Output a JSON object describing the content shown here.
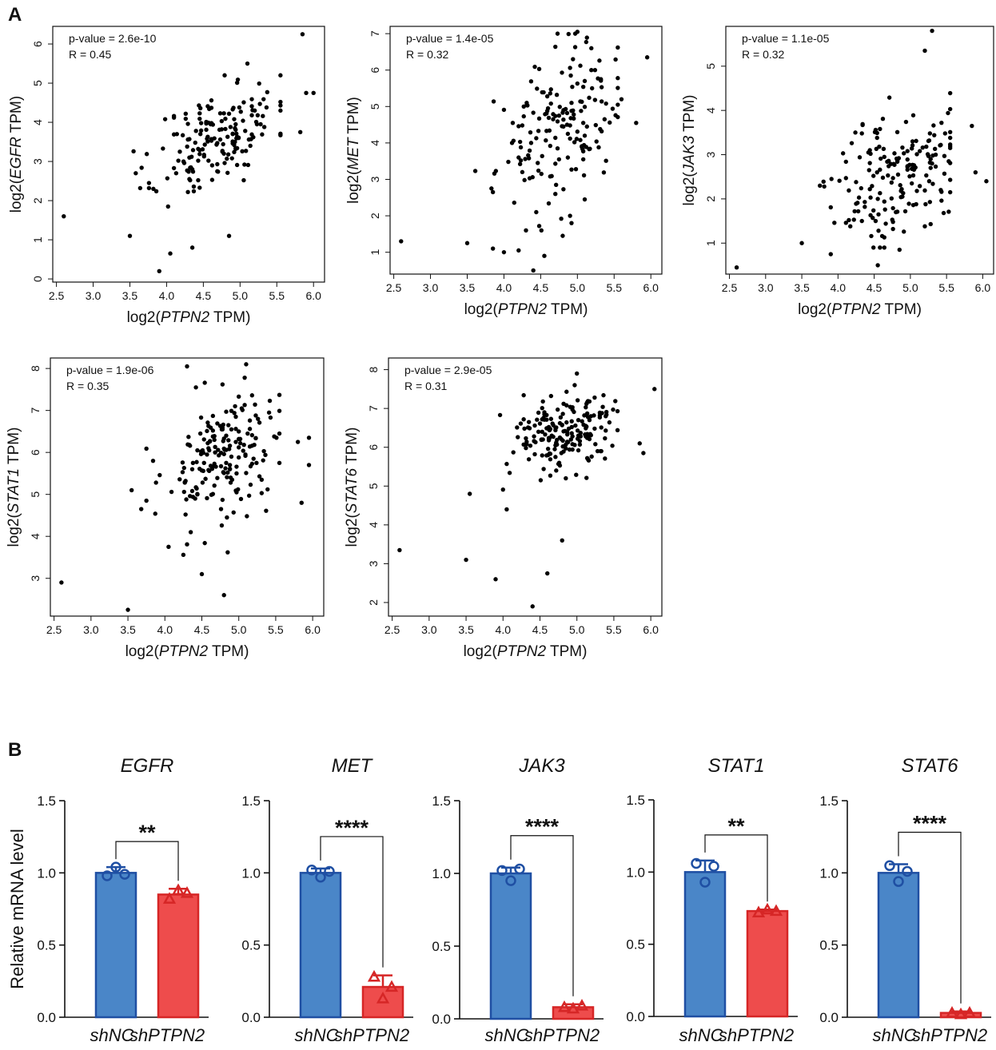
{
  "panels": {
    "a": "A",
    "b": "B"
  },
  "colors": {
    "shNC": "#4a86c8",
    "shNC_edge": "#1f4fa3",
    "shPTPN2": "#ee4c4c",
    "shPTPN2_edge": "#d62626",
    "point": "#000000",
    "ink": "#111111"
  },
  "chart_data": [
    {
      "type": "scatter",
      "id": "EGFR",
      "xlabel_prefix": "log2(",
      "xlabel_gene": "PTPN2",
      "xlabel_suffix": " TPM)",
      "ylabel_prefix": "log2(",
      "ylabel_gene": "EGFR",
      "ylabel_suffix": " TPM)",
      "p_text": "p-value = 2.6e-10",
      "r_text": "R = 0.45",
      "xticks": [
        2.5,
        3.0,
        3.5,
        4.0,
        4.5,
        5.0,
        5.5,
        6.0
      ],
      "xticklabels": [
        "2.5",
        "3.0",
        "3.5",
        "4.0",
        "4.5",
        "5.0",
        "5.5",
        "6.0"
      ],
      "yticks": [
        0,
        1,
        2,
        3,
        4,
        5,
        6
      ],
      "yticklabels": [
        "0",
        "1",
        "2",
        "3",
        "4",
        "5",
        "6"
      ],
      "xlim": [
        2.45,
        6.15
      ],
      "ylim": [
        -0.08,
        6.45
      ]
    },
    {
      "type": "scatter",
      "id": "MET",
      "xlabel_prefix": "log2(",
      "xlabel_gene": "PTPN2",
      "xlabel_suffix": " TPM)",
      "ylabel_prefix": "log2(",
      "ylabel_gene": "MET",
      "ylabel_suffix": " TPM)",
      "p_text": "p-value = 1.4e-05",
      "r_text": "R = 0.32",
      "xticks": [
        2.5,
        3.0,
        3.5,
        4.0,
        4.5,
        5.0,
        5.5,
        6.0
      ],
      "xticklabels": [
        "2.5",
        "3.0",
        "3.5",
        "4.0",
        "4.5",
        "5.0",
        "5.5",
        "6.0"
      ],
      "yticks": [
        1,
        2,
        3,
        4,
        5,
        6,
        7
      ],
      "yticklabels": [
        "1",
        "2",
        "3",
        "4",
        "5",
        "6",
        "7"
      ],
      "xlim": [
        2.45,
        6.15
      ],
      "ylim": [
        0.4,
        7.2
      ]
    },
    {
      "type": "scatter",
      "id": "JAK3",
      "xlabel_prefix": "log2(",
      "xlabel_gene": "PTPN2",
      "xlabel_suffix": " TPM)",
      "ylabel_prefix": "log2(",
      "ylabel_gene": "JAK3",
      "ylabel_suffix": " TPM)",
      "p_text": "p-value = 1.1e-05",
      "r_text": "R = 0.32",
      "xticks": [
        2.5,
        3.0,
        3.5,
        4.0,
        4.5,
        5.0,
        5.5,
        6.0
      ],
      "xticklabels": [
        "2.5",
        "3.0",
        "3.5",
        "4.0",
        "4.5",
        "5.0",
        "5.5",
        "6.0"
      ],
      "yticks": [
        1,
        2,
        3,
        4,
        5
      ],
      "yticklabels": [
        "1",
        "2",
        "3",
        "4",
        "5"
      ],
      "xlim": [
        2.45,
        6.15
      ],
      "ylim": [
        0.3,
        5.9
      ]
    },
    {
      "type": "scatter",
      "id": "STAT1",
      "xlabel_prefix": "log2(",
      "xlabel_gene": "PTPN2",
      "xlabel_suffix": " TPM)",
      "ylabel_prefix": "log2(",
      "ylabel_gene": "STAT1",
      "ylabel_suffix": " TPM)",
      "p_text": "p-value = 1.9e-06",
      "r_text": "R = 0.35",
      "xticks": [
        2.5,
        3.0,
        3.5,
        4.0,
        4.5,
        5.0,
        5.5,
        6.0
      ],
      "xticklabels": [
        "2.5",
        "3.0",
        "3.5",
        "4.0",
        "4.5",
        "5.0",
        "5.5",
        "6.0"
      ],
      "yticks": [
        3,
        4,
        5,
        6,
        7,
        8
      ],
      "yticklabels": [
        "3",
        "4",
        "5",
        "6",
        "7",
        "8"
      ],
      "xlim": [
        2.45,
        6.15
      ],
      "ylim": [
        2.1,
        8.25
      ]
    },
    {
      "type": "scatter",
      "id": "STAT6",
      "xlabel_prefix": "log2(",
      "xlabel_gene": "PTPN2",
      "xlabel_suffix": " TPM)",
      "ylabel_prefix": "log2(",
      "ylabel_gene": "STAT6",
      "ylabel_suffix": " TPM)",
      "p_text": "p-value = 2.9e-05",
      "r_text": "R = 0.31",
      "xticks": [
        2.5,
        3.0,
        3.5,
        4.0,
        4.5,
        5.0,
        5.5,
        6.0
      ],
      "xticklabels": [
        "2.5",
        "3.0",
        "3.5",
        "4.0",
        "4.5",
        "5.0",
        "5.5",
        "6.0"
      ],
      "yticks": [
        2,
        3,
        4,
        5,
        6,
        7,
        8
      ],
      "yticklabels": [
        "2",
        "3",
        "4",
        "5",
        "6",
        "7",
        "8"
      ],
      "xlim": [
        2.45,
        6.15
      ],
      "ylim": [
        1.65,
        8.3
      ]
    },
    {
      "type": "bar",
      "id": "bar-EGFR",
      "title": "EGFR",
      "categories": [
        "shNC",
        "shPTPN2"
      ],
      "means": [
        1.0,
        0.85
      ],
      "errors": [
        0.04,
        0.04
      ],
      "points": [
        [
          0.98,
          1.04,
          0.99
        ],
        [
          0.82,
          0.88,
          0.86
        ]
      ],
      "significance": "**",
      "ylim": [
        0,
        1.5
      ],
      "yticks": [
        0,
        0.5,
        1.0,
        1.5
      ],
      "yticklabels": [
        "0.0",
        "0.5",
        "1.0",
        "1.5"
      ],
      "ylabel": "Relative mRNA level"
    },
    {
      "type": "bar",
      "id": "bar-MET",
      "title": "MET",
      "categories": [
        "shNC",
        "shPTPN2"
      ],
      "means": [
        1.0,
        0.21
      ],
      "errors": [
        0.03,
        0.08
      ],
      "points": [
        [
          1.02,
          0.97,
          1.01
        ],
        [
          0.28,
          0.13,
          0.21
        ]
      ],
      "significance": "****",
      "ylim": [
        0,
        1.5
      ],
      "yticks": [
        0,
        0.5,
        1.0,
        1.5
      ],
      "yticklabels": [
        "0.0",
        "0.5",
        "1.0",
        "1.5"
      ]
    },
    {
      "type": "bar",
      "id": "bar-JAK3",
      "title": "JAK3",
      "categories": [
        "shNC",
        "shPTPN2"
      ],
      "means": [
        1.0,
        0.08
      ],
      "errors": [
        0.04,
        0.02
      ],
      "points": [
        [
          1.02,
          0.95,
          1.03
        ],
        [
          0.08,
          0.07,
          0.09
        ]
      ],
      "significance": "****",
      "ylim": [
        0,
        1.5
      ],
      "yticks": [
        0,
        0.5,
        1.0,
        1.5
      ],
      "yticklabels": [
        "0.0",
        "0.5",
        "1.0",
        "1.5"
      ]
    },
    {
      "type": "bar",
      "id": "bar-STAT1",
      "title": "STAT1",
      "categories": [
        "shNC",
        "shPTPN2"
      ],
      "means": [
        1.0,
        0.73
      ],
      "errors": [
        0.08,
        0.01
      ],
      "points": [
        [
          1.06,
          0.93,
          1.04
        ],
        [
          0.72,
          0.74,
          0.73
        ]
      ],
      "significance": "**",
      "ylim": [
        0,
        1.5
      ],
      "yticks": [
        0,
        0.5,
        1.0,
        1.5
      ],
      "yticklabels": [
        "0.0",
        "0.5",
        "1.0",
        "1.5"
      ]
    },
    {
      "type": "bar",
      "id": "bar-STAT6",
      "title": "STAT6",
      "categories": [
        "shNC",
        "shPTPN2"
      ],
      "means": [
        1.0,
        0.03
      ],
      "errors": [
        0.06,
        0.01
      ],
      "points": [
        [
          1.05,
          0.94,
          1.01
        ],
        [
          0.03,
          0.02,
          0.03
        ]
      ],
      "significance": "****",
      "ylim": [
        0,
        1.5
      ],
      "yticks": [
        0,
        0.5,
        1.0,
        1.5
      ],
      "yticklabels": [
        "0.0",
        "0.5",
        "1.0",
        "1.5"
      ]
    }
  ]
}
